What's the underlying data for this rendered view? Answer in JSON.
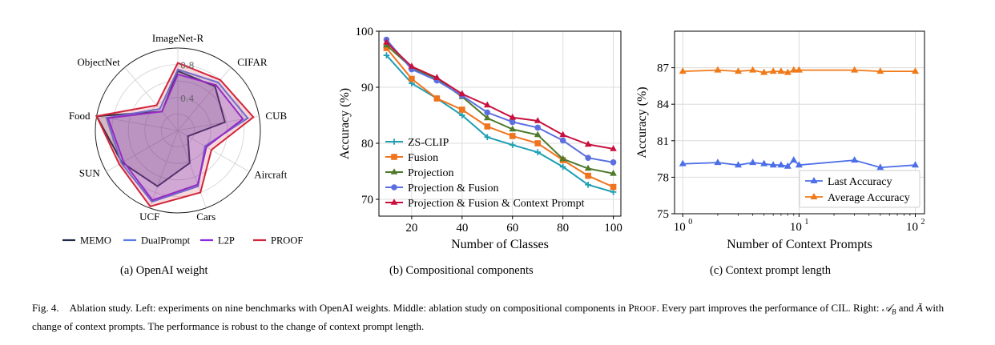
{
  "chart_data": [
    {
      "type": "radar",
      "categories": [
        "ImageNet-R",
        "CIFAR",
        "CUB",
        "Aircraft",
        "Cars",
        "UCF",
        "SUN",
        "Food",
        "ObjectNet"
      ],
      "rlim": [
        0,
        1
      ],
      "rticks": [
        "0.4",
        "0.8"
      ],
      "series": [
        {
          "name": "MEMO",
          "color": "#1f2a44",
          "values": [
            0.72,
            0.7,
            0.58,
            0.14,
            0.42,
            0.72,
            0.78,
            1.0,
            0.3
          ]
        },
        {
          "name": "DualPrompt",
          "color": "#5b7be8",
          "values": [
            0.74,
            0.76,
            0.86,
            0.38,
            0.72,
            0.92,
            0.79,
            0.88,
            0.34
          ]
        },
        {
          "name": "L2P",
          "color": "#8a2be2",
          "values": [
            0.68,
            0.72,
            0.8,
            0.4,
            0.7,
            0.9,
            0.76,
            0.86,
            0.3
          ]
        },
        {
          "name": "PROOF",
          "color": "#d1263b",
          "values": [
            0.82,
            0.8,
            0.93,
            0.47,
            0.8,
            0.98,
            0.82,
            1.0,
            0.4
          ]
        }
      ]
    },
    {
      "type": "line",
      "xlabel": "Number of Classes",
      "ylabel": "Accuracy (%)",
      "xlim": [
        7,
        103
      ],
      "ylim": [
        67,
        100
      ],
      "xticks": [
        20,
        40,
        60,
        80,
        100
      ],
      "yticks": [
        70,
        80,
        90,
        100
      ],
      "x": [
        10,
        20,
        30,
        40,
        50,
        60,
        70,
        80,
        90,
        100
      ],
      "series": [
        {
          "name": "ZS-CLIP",
          "color": "#1f9fb4",
          "marker": "plus",
          "values": [
            95.7,
            90.7,
            88.0,
            85.0,
            81.1,
            79.7,
            78.4,
            75.8,
            72.6,
            71.3
          ]
        },
        {
          "name": "Fusion",
          "color": "#f0731e",
          "marker": "square",
          "values": [
            97.0,
            91.5,
            88.0,
            86.0,
            83.0,
            81.3,
            80.0,
            77.0,
            74.2,
            72.2
          ]
        },
        {
          "name": "Projection",
          "color": "#4e7a2c",
          "marker": "triangle",
          "values": [
            97.5,
            93.5,
            91.5,
            88.3,
            84.5,
            82.5,
            81.5,
            77.2,
            75.5,
            74.6
          ]
        },
        {
          "name": "Projection & Fusion",
          "color": "#5b6fe0",
          "marker": "circle",
          "values": [
            98.5,
            93.2,
            91.2,
            88.5,
            85.5,
            83.8,
            82.8,
            80.5,
            77.4,
            76.6
          ]
        },
        {
          "name": "Projection & Fusion & Context Prompt",
          "color": "#c8103e",
          "marker": "triangle",
          "values": [
            98.0,
            93.7,
            91.7,
            88.8,
            86.8,
            84.6,
            84.0,
            81.5,
            79.8,
            79.0
          ]
        }
      ]
    },
    {
      "type": "line",
      "xscale": "log",
      "xlabel": "Number of Context Prompts",
      "ylabel": "Accuracy (%)",
      "xlim": [
        0.85,
        120
      ],
      "ylim": [
        75,
        90
      ],
      "yticks": [
        "75",
        "78",
        "81",
        "84",
        "87"
      ],
      "xticks": [
        "10",
        "10",
        "10"
      ],
      "xtick_exponents": [
        "0",
        "1",
        "2"
      ],
      "x": [
        1,
        2,
        3,
        4,
        5,
        6,
        7,
        8,
        9,
        10,
        30,
        50,
        100
      ],
      "series": [
        {
          "name": "Last Accuracy",
          "color": "#4c6fe8",
          "marker": "triangle",
          "values": [
            79.1,
            79.2,
            79.0,
            79.2,
            79.1,
            79.0,
            79.0,
            78.9,
            79.4,
            79.0,
            79.4,
            78.8,
            79.0
          ]
        },
        {
          "name": "Average Accuracy",
          "color": "#f07a18",
          "marker": "triangle",
          "values": [
            86.7,
            86.8,
            86.7,
            86.8,
            86.6,
            86.7,
            86.7,
            86.6,
            86.8,
            86.8,
            86.8,
            86.7,
            86.7
          ]
        }
      ]
    }
  ],
  "subcaptions": {
    "a": "(a)  OpenAI weight",
    "b": "(b)  Compositional components",
    "c": "(c)  Context prompt length"
  },
  "caption": {
    "fig": "Fig. 4.",
    "text1": "Ablation study. Left: experiments on nine benchmarks with OpenAI weights. Middle: ablation study on compositional components in P",
    "proof_sc": "ROOF",
    "text2": ". Every part improves the performance of CIL. Right: ",
    "ab": "𝒜",
    "ab_sub": "B",
    "and": " and ",
    "abar": "Ā",
    "text3": " with change of context prompts. The performance is robust to the change of context prompt length."
  }
}
